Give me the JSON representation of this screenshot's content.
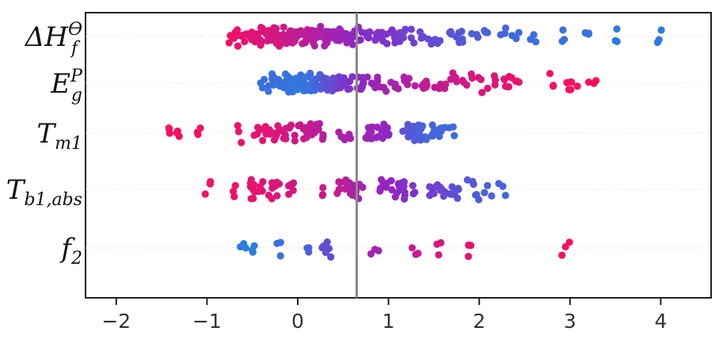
{
  "chart_data": {
    "type": "scatter",
    "subtype": "beeswarm",
    "title": "",
    "xlabel": "",
    "ylabel": "",
    "xlim": [
      -2.3,
      4.5
    ],
    "xticks": [
      -2,
      -1,
      0,
      1,
      2,
      3,
      4
    ],
    "xtick_labels": [
      "−2",
      "−1",
      "0",
      "1",
      "2",
      "3",
      "4"
    ],
    "vline_x": 0.65,
    "grid": false,
    "legend": "none",
    "color_low": "#1e88e5",
    "color_high": "#ff0d57",
    "features": [
      {
        "label": {
          "base": "ΔH",
          "sub": "f",
          "sup": "ϴ"
        },
        "points": [
          [
            -0.72,
            0.95
          ],
          [
            -0.68,
            0.9
          ],
          [
            -0.62,
            0.92
          ],
          [
            -0.58,
            0.88
          ],
          [
            -0.55,
            0.9
          ],
          [
            -0.52,
            0.85
          ],
          [
            -0.5,
            0.9
          ],
          [
            -0.48,
            0.86
          ],
          [
            -0.45,
            0.88
          ],
          [
            -0.42,
            0.84
          ],
          [
            -0.4,
            0.87
          ],
          [
            -0.38,
            0.83
          ],
          [
            -0.35,
            0.85
          ],
          [
            -0.32,
            0.82
          ],
          [
            -0.3,
            0.86
          ],
          [
            -0.27,
            0.8
          ],
          [
            -0.25,
            0.84
          ],
          [
            -0.22,
            0.79
          ],
          [
            -0.2,
            0.83
          ],
          [
            -0.17,
            0.78
          ],
          [
            -0.15,
            0.8
          ],
          [
            -0.12,
            0.76
          ],
          [
            -0.1,
            0.78
          ],
          [
            -0.07,
            0.75
          ],
          [
            -0.05,
            0.77
          ],
          [
            -0.02,
            0.73
          ],
          [
            0.0,
            0.75
          ],
          [
            0.03,
            0.72
          ],
          [
            0.05,
            0.73
          ],
          [
            0.08,
            0.7
          ],
          [
            0.1,
            0.72
          ],
          [
            0.13,
            0.69
          ],
          [
            0.15,
            0.7
          ],
          [
            0.18,
            0.67
          ],
          [
            0.2,
            0.68
          ],
          [
            0.23,
            0.65
          ],
          [
            0.25,
            0.66
          ],
          [
            0.28,
            0.64
          ],
          [
            0.3,
            0.65
          ],
          [
            0.33,
            0.62
          ],
          [
            0.35,
            0.63
          ],
          [
            0.38,
            0.6
          ],
          [
            0.4,
            0.61
          ],
          [
            0.43,
            0.58
          ],
          [
            0.45,
            0.59
          ],
          [
            0.48,
            0.56
          ],
          [
            0.5,
            0.57
          ],
          [
            0.55,
            0.55
          ],
          [
            0.6,
            0.53
          ],
          [
            0.65,
            0.52
          ],
          [
            0.7,
            0.5
          ],
          [
            0.75,
            0.48
          ],
          [
            0.8,
            0.47
          ],
          [
            0.85,
            0.46
          ],
          [
            0.9,
            0.45
          ],
          [
            0.95,
            0.44
          ],
          [
            1.0,
            0.43
          ],
          [
            1.05,
            0.42
          ],
          [
            1.1,
            0.4
          ],
          [
            1.15,
            0.38
          ],
          [
            1.2,
            0.37
          ],
          [
            1.25,
            0.36
          ],
          [
            1.35,
            0.34
          ],
          [
            1.45,
            0.32
          ],
          [
            1.55,
            0.3
          ],
          [
            1.65,
            0.28
          ],
          [
            1.75,
            0.26
          ],
          [
            1.85,
            0.24
          ],
          [
            1.95,
            0.22
          ],
          [
            2.1,
            0.2
          ],
          [
            2.25,
            0.18
          ],
          [
            2.4,
            0.16
          ],
          [
            2.6,
            0.14
          ],
          [
            2.9,
            0.12
          ],
          [
            3.2,
            0.1
          ],
          [
            3.5,
            0.08
          ],
          [
            4.0,
            0.06
          ]
        ]
      },
      {
        "label": {
          "base": "E",
          "sub": "g",
          "sup": "P"
        },
        "points": [
          [
            -0.38,
            0.12
          ],
          [
            -0.32,
            0.1
          ],
          [
            -0.28,
            0.15
          ],
          [
            -0.25,
            0.12
          ],
          [
            -0.2,
            0.1
          ],
          [
            -0.17,
            0.14
          ],
          [
            -0.15,
            0.11
          ],
          [
            -0.12,
            0.13
          ],
          [
            -0.1,
            0.1
          ],
          [
            -0.07,
            0.12
          ],
          [
            -0.05,
            0.09
          ],
          [
            -0.02,
            0.11
          ],
          [
            0.0,
            0.08
          ],
          [
            0.02,
            0.1
          ],
          [
            0.05,
            0.09
          ],
          [
            0.07,
            0.11
          ],
          [
            0.1,
            0.1
          ],
          [
            0.12,
            0.13
          ],
          [
            0.15,
            0.12
          ],
          [
            0.18,
            0.15
          ],
          [
            0.2,
            0.14
          ],
          [
            0.23,
            0.18
          ],
          [
            0.25,
            0.2
          ],
          [
            0.28,
            0.22
          ],
          [
            0.3,
            0.25
          ],
          [
            0.33,
            0.28
          ],
          [
            0.35,
            0.3
          ],
          [
            0.38,
            0.32
          ],
          [
            0.42,
            0.35
          ],
          [
            0.45,
            0.38
          ],
          [
            0.5,
            0.4
          ],
          [
            0.55,
            0.42
          ],
          [
            0.6,
            0.45
          ],
          [
            0.65,
            0.47
          ],
          [
            0.7,
            0.5
          ],
          [
            0.75,
            0.52
          ],
          [
            0.8,
            0.55
          ],
          [
            0.88,
            0.57
          ],
          [
            0.95,
            0.6
          ],
          [
            1.05,
            0.62
          ],
          [
            1.15,
            0.65
          ],
          [
            1.25,
            0.67
          ],
          [
            1.35,
            0.7
          ],
          [
            1.45,
            0.72
          ],
          [
            1.55,
            0.74
          ],
          [
            1.65,
            0.76
          ],
          [
            1.75,
            0.78
          ],
          [
            1.85,
            0.8
          ],
          [
            1.95,
            0.82
          ],
          [
            2.05,
            0.84
          ],
          [
            2.15,
            0.86
          ],
          [
            2.25,
            0.88
          ],
          [
            2.35,
            0.9
          ],
          [
            2.42,
            0.92
          ],
          [
            2.8,
            0.94
          ],
          [
            3.0,
            0.96
          ],
          [
            3.05,
            0.97
          ],
          [
            3.25,
            0.98
          ]
        ]
      },
      {
        "label": {
          "base": "T",
          "sub": "m1",
          "sup": ""
        },
        "points": [
          [
            -1.4,
            0.97
          ],
          [
            -1.3,
            0.96
          ],
          [
            -1.1,
            0.94
          ],
          [
            -0.65,
            0.92
          ],
          [
            -0.45,
            0.9
          ],
          [
            -0.38,
            0.89
          ],
          [
            -0.35,
            0.88
          ],
          [
            -0.3,
            0.86
          ],
          [
            -0.25,
            0.85
          ],
          [
            -0.2,
            0.84
          ],
          [
            -0.15,
            0.82
          ],
          [
            -0.1,
            0.81
          ],
          [
            -0.05,
            0.8
          ],
          [
            0.0,
            0.78
          ],
          [
            0.05,
            0.77
          ],
          [
            0.1,
            0.75
          ],
          [
            0.15,
            0.74
          ],
          [
            0.2,
            0.72
          ],
          [
            0.25,
            0.7
          ],
          [
            0.28,
            0.68
          ],
          [
            0.48,
            0.64
          ],
          [
            0.55,
            0.62
          ],
          [
            0.75,
            0.6
          ],
          [
            0.8,
            0.58
          ],
          [
            0.85,
            0.56
          ],
          [
            0.9,
            0.54
          ],
          [
            0.95,
            0.52
          ],
          [
            1.0,
            0.5
          ],
          [
            1.2,
            0.3
          ],
          [
            1.22,
            0.28
          ],
          [
            1.25,
            0.26
          ],
          [
            1.27,
            0.25
          ],
          [
            1.3,
            0.24
          ],
          [
            1.32,
            0.23
          ],
          [
            1.35,
            0.22
          ],
          [
            1.37,
            0.21
          ],
          [
            1.4,
            0.2
          ],
          [
            1.45,
            0.19
          ],
          [
            1.5,
            0.18
          ],
          [
            1.55,
            0.17
          ],
          [
            1.6,
            0.16
          ],
          [
            1.7,
            0.15
          ]
        ]
      },
      {
        "label": {
          "base": "T",
          "sub": "b1,abs",
          "sup": ""
        },
        "points": [
          [
            -1.0,
            0.95
          ],
          [
            -0.7,
            0.93
          ],
          [
            -0.5,
            0.91
          ],
          [
            -0.48,
            0.9
          ],
          [
            -0.45,
            0.89
          ],
          [
            -0.4,
            0.88
          ],
          [
            -0.3,
            0.86
          ],
          [
            -0.25,
            0.85
          ],
          [
            -0.2,
            0.84
          ],
          [
            -0.1,
            0.82
          ],
          [
            -0.05,
            0.81
          ],
          [
            0.25,
            0.78
          ],
          [
            0.45,
            0.74
          ],
          [
            0.5,
            0.72
          ],
          [
            0.55,
            0.7
          ],
          [
            0.6,
            0.68
          ],
          [
            0.62,
            0.66
          ],
          [
            0.65,
            0.64
          ],
          [
            0.68,
            0.62
          ],
          [
            0.7,
            0.6
          ],
          [
            0.9,
            0.56
          ],
          [
            0.95,
            0.55
          ],
          [
            1.0,
            0.53
          ],
          [
            1.05,
            0.52
          ],
          [
            1.1,
            0.5
          ],
          [
            1.15,
            0.48
          ],
          [
            1.2,
            0.46
          ],
          [
            1.3,
            0.43
          ],
          [
            1.45,
            0.4
          ],
          [
            1.5,
            0.38
          ],
          [
            1.55,
            0.36
          ],
          [
            1.6,
            0.34
          ],
          [
            1.65,
            0.32
          ],
          [
            1.7,
            0.3
          ],
          [
            1.8,
            0.27
          ],
          [
            1.9,
            0.25
          ],
          [
            2.0,
            0.22
          ],
          [
            2.1,
            0.2
          ],
          [
            2.25,
            0.18
          ]
        ]
      },
      {
        "label": {
          "base": "f",
          "sub": "2",
          "sup": ""
        },
        "points": [
          [
            -0.6,
            0.05
          ],
          [
            -0.52,
            0.05
          ],
          [
            -0.2,
            0.12
          ],
          [
            0.1,
            0.2
          ],
          [
            0.3,
            0.3
          ],
          [
            0.35,
            0.32
          ],
          [
            0.85,
            0.6
          ],
          [
            1.3,
            0.75
          ],
          [
            1.55,
            0.82
          ],
          [
            1.9,
            0.9
          ],
          [
            2.95,
            0.95
          ]
        ]
      }
    ]
  }
}
